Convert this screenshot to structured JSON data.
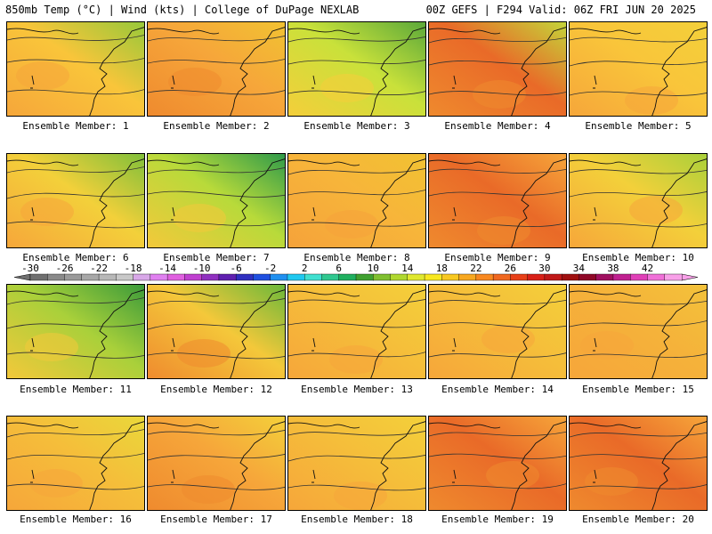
{
  "header": {
    "left": "850mb Temp (°C) | Wind (kts) | College of DuPage NEXLAB",
    "right": "00Z GEFS | F294 Valid: 06Z FRI JUN 20 2025"
  },
  "members": [
    {
      "label": "Ensemble Member: 1",
      "colors": [
        "#f6a63a",
        "#f9c53a",
        "#96c83a"
      ]
    },
    {
      "label": "Ensemble Member: 2",
      "colors": [
        "#ef8a2e",
        "#f6a63a",
        "#f1c232"
      ]
    },
    {
      "label": "Ensemble Member: 3",
      "colors": [
        "#f5ce3a",
        "#c9e13a",
        "#5aa83a"
      ]
    },
    {
      "label": "Ensemble Member: 4",
      "colors": [
        "#ef8a2e",
        "#e96a28",
        "#c3d63a"
      ]
    },
    {
      "label": "Ensemble Member: 5",
      "colors": [
        "#f6a63a",
        "#f9c53a",
        "#f3d03a"
      ]
    },
    {
      "label": "Ensemble Member: 6",
      "colors": [
        "#f6a63a",
        "#f3d03a",
        "#7fbf3a"
      ]
    },
    {
      "label": "Ensemble Member: 7",
      "colors": [
        "#f4c83a",
        "#b8da3a",
        "#2e9a4a"
      ]
    },
    {
      "label": "Ensemble Member: 8",
      "colors": [
        "#f5a23a",
        "#f7b53a",
        "#f1c232"
      ]
    },
    {
      "label": "Ensemble Member: 9",
      "colors": [
        "#ef8a2e",
        "#e96a28",
        "#f6a63a"
      ]
    },
    {
      "label": "Ensemble Member: 10",
      "colors": [
        "#f6a63a",
        "#f3d03a",
        "#a9d03a"
      ]
    },
    {
      "label": "Ensemble Member: 11",
      "colors": [
        "#f4c83a",
        "#a9d03a",
        "#3a9a3a"
      ]
    },
    {
      "label": "Ensemble Member: 12",
      "colors": [
        "#ef8a2e",
        "#f4c83a",
        "#6ab83a"
      ]
    },
    {
      "label": "Ensemble Member: 13",
      "colors": [
        "#f6a63a",
        "#f5be3a",
        "#f3d03a"
      ]
    },
    {
      "label": "Ensemble Member: 14",
      "colors": [
        "#f6a63a",
        "#f5be3a",
        "#f3d03a"
      ]
    },
    {
      "label": "Ensemble Member: 15",
      "colors": [
        "#f6a63a",
        "#f5b23a",
        "#f3c23a"
      ]
    },
    {
      "label": "Ensemble Member: 16",
      "colors": [
        "#f6a63a",
        "#f5be3a",
        "#e9d83a"
      ]
    },
    {
      "label": "Ensemble Member: 17",
      "colors": [
        "#ef8a2e",
        "#f6a63a",
        "#f3d03a"
      ]
    },
    {
      "label": "Ensemble Member: 18",
      "colors": [
        "#f6a63a",
        "#f5be3a",
        "#f3d03a"
      ]
    },
    {
      "label": "Ensemble Member: 19",
      "colors": [
        "#ef8a2e",
        "#e96a28",
        "#f6a63a"
      ]
    },
    {
      "label": "Ensemble Member: 20",
      "colors": [
        "#ef8a2e",
        "#e96a28",
        "#f6a63a"
      ]
    }
  ],
  "colorbar": {
    "labels": [
      "-30",
      "-26",
      "-22",
      "-18",
      "-14",
      "-10",
      "-6",
      "-2",
      "2",
      "6",
      "10",
      "14",
      "18",
      "22",
      "26",
      "30",
      "34",
      "38",
      "42"
    ],
    "colors": [
      "#707070",
      "#8a8a8a",
      "#9a9a9a",
      "#a8a8a8",
      "#b8b8b8",
      "#c8c8c8",
      "#d8a8e8",
      "#e080f0",
      "#e060e0",
      "#c040d0",
      "#9030c0",
      "#6020b0",
      "#3030c0",
      "#2050e0",
      "#2090f0",
      "#20c8f0",
      "#40e0d0",
      "#30c890",
      "#20b060",
      "#40a030",
      "#80c030",
      "#b0d830",
      "#e0e830",
      "#f8e820",
      "#f8c820",
      "#f8a820",
      "#f88820",
      "#f06820",
      "#e84018",
      "#d82018",
      "#c01818",
      "#a01010",
      "#900828",
      "#a01060",
      "#c02090",
      "#e040b8",
      "#f070d8",
      "#f8a0e8"
    ]
  }
}
